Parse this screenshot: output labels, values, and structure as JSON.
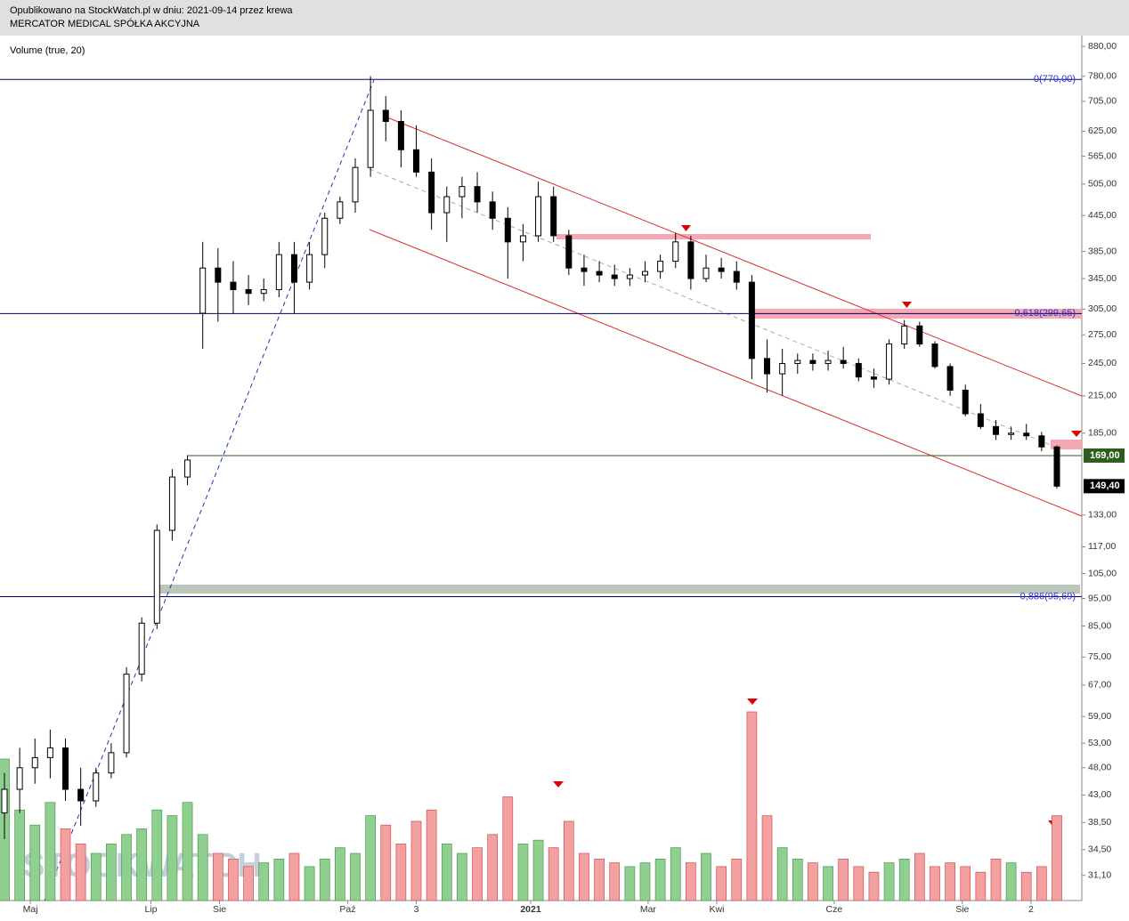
{
  "header": {
    "line1": "Opublikowano na StockWatch.pl w dniu: 2021-09-14 przez krewa",
    "line2": "MERCATOR MEDICAL SPÓŁKA AKCYJNA"
  },
  "chart_data": {
    "type": "candlestick",
    "indicator": "Volume (true, 20)",
    "watermark": "STOCKWATCH",
    "log_scale": true,
    "ylim": [
      28.1,
      919
    ],
    "xlim": [
      0,
      69
    ],
    "yticks": [
      {
        "value": 880,
        "label": "880,00"
      },
      {
        "value": 780,
        "label": "780,00"
      },
      {
        "value": 705,
        "label": "705,00"
      },
      {
        "value": 625,
        "label": "625,00"
      },
      {
        "value": 565,
        "label": "565,00"
      },
      {
        "value": 505,
        "label": "505,00"
      },
      {
        "value": 445,
        "label": "445,00"
      },
      {
        "value": 385,
        "label": "385,00"
      },
      {
        "value": 345,
        "label": "345,00"
      },
      {
        "value": 305,
        "label": "305,00"
      },
      {
        "value": 275,
        "label": "275,00"
      },
      {
        "value": 245,
        "label": "245,00"
      },
      {
        "value": 215,
        "label": "215,00"
      },
      {
        "value": 185,
        "label": "185,00"
      },
      {
        "value": 133,
        "label": "133,00"
      },
      {
        "value": 117,
        "label": "117,00"
      },
      {
        "value": 105,
        "label": "105,00"
      },
      {
        "value": 95,
        "label": "95,00"
      },
      {
        "value": 85,
        "label": "85,00"
      },
      {
        "value": 75,
        "label": "75,00"
      },
      {
        "value": 67,
        "label": "67,00"
      },
      {
        "value": 59,
        "label": "59,00"
      },
      {
        "value": 53,
        "label": "53,00"
      },
      {
        "value": 48,
        "label": "48,00"
      },
      {
        "value": 43,
        "label": "43,00"
      },
      {
        "value": 38.5,
        "label": "38,50"
      },
      {
        "value": 34.5,
        "label": "34,50"
      },
      {
        "value": 31.1,
        "label": "31,10"
      }
    ],
    "xticks": [
      {
        "value": 1.7,
        "label": "Maj"
      },
      {
        "value": 9.6,
        "label": "Lip"
      },
      {
        "value": 14.1,
        "label": "Sie"
      },
      {
        "value": 22.5,
        "label": "Paź"
      },
      {
        "value": 27,
        "label": "3"
      },
      {
        "value": 34.5,
        "label": "2021"
      },
      {
        "value": 42.2,
        "label": "Mar"
      },
      {
        "value": 46.7,
        "label": "Kwi"
      },
      {
        "value": 54.4,
        "label": "Cze"
      },
      {
        "value": 62.8,
        "label": "Sie"
      },
      {
        "value": 67.3,
        "label": "2"
      }
    ],
    "levels": [
      {
        "value": 770,
        "label": "0(770,00)",
        "color": "#00006e"
      },
      {
        "value": 299.65,
        "label": "0,618(299,65)",
        "color": "#00006e"
      },
      {
        "value": 95.69,
        "label": "0,886(95,69)",
        "color": "#00006e"
      }
    ],
    "price_lines": [
      {
        "value": 169,
        "label": "169,00",
        "color": "#2e5e1e"
      },
      {
        "value": 149.4,
        "label": "149,40",
        "color": "#000000"
      }
    ],
    "up_color": "#8fcf8f",
    "down_color": "#f2a0a0",
    "open": [
      40,
      44,
      48,
      50,
      52,
      44,
      42,
      47,
      51,
      70,
      86,
      125,
      155,
      300,
      360,
      340,
      330,
      325,
      330,
      380,
      340,
      380,
      440,
      470,
      540,
      680,
      650,
      580,
      530,
      450,
      480,
      500,
      470,
      440,
      400,
      410,
      480,
      410,
      360,
      355,
      350,
      345,
      350,
      355,
      370,
      400,
      345,
      360,
      355,
      340,
      250,
      235,
      245,
      248,
      245,
      248,
      245,
      232,
      230,
      265,
      285,
      265,
      242,
      220,
      200,
      190,
      184,
      185,
      183,
      175
    ],
    "high": [
      47,
      52,
      54,
      56,
      54,
      48,
      48,
      53,
      72,
      88,
      128,
      160,
      169,
      400,
      390,
      370,
      350,
      345,
      400,
      400,
      400,
      450,
      480,
      560,
      780,
      720,
      680,
      640,
      560,
      500,
      520,
      530,
      490,
      460,
      430,
      510,
      500,
      420,
      380,
      370,
      365,
      360,
      370,
      380,
      415,
      410,
      380,
      375,
      370,
      350,
      270,
      260,
      255,
      255,
      258,
      262,
      250,
      240,
      270,
      292,
      290,
      268,
      245,
      225,
      208,
      195,
      190,
      192,
      186,
      176
    ],
    "low": [
      36,
      40,
      45,
      46,
      42,
      38,
      41,
      46,
      50,
      68,
      84,
      120,
      150,
      260,
      290,
      300,
      310,
      315,
      320,
      300,
      330,
      360,
      430,
      450,
      520,
      600,
      540,
      520,
      420,
      400,
      440,
      450,
      420,
      345,
      370,
      400,
      400,
      350,
      335,
      340,
      335,
      335,
      340,
      345,
      360,
      330,
      340,
      345,
      330,
      230,
      218,
      215,
      235,
      238,
      238,
      240,
      228,
      222,
      225,
      260,
      262,
      240,
      215,
      198,
      188,
      180,
      180,
      180,
      172,
      148
    ],
    "close": [
      44,
      48,
      50,
      52,
      44,
      42,
      47,
      51,
      70,
      86,
      125,
      155,
      166,
      360,
      340,
      330,
      325,
      330,
      380,
      340,
      380,
      440,
      470,
      540,
      680,
      650,
      580,
      530,
      450,
      480,
      500,
      470,
      440,
      400,
      410,
      480,
      410,
      360,
      355,
      350,
      345,
      350,
      355,
      370,
      400,
      345,
      360,
      355,
      340,
      250,
      235,
      245,
      248,
      245,
      248,
      245,
      232,
      230,
      265,
      285,
      265,
      242,
      220,
      200,
      190,
      184,
      185,
      183,
      175,
      149.4
    ],
    "volume": [
      75,
      48,
      40,
      52,
      38,
      30,
      25,
      30,
      35,
      38,
      48,
      45,
      52,
      35,
      25,
      22,
      18,
      20,
      22,
      25,
      18,
      22,
      28,
      25,
      45,
      40,
      30,
      42,
      48,
      30,
      25,
      28,
      35,
      55,
      30,
      32,
      28,
      42,
      25,
      22,
      20,
      18,
      20,
      22,
      28,
      20,
      25,
      18,
      22,
      100,
      45,
      28,
      22,
      20,
      18,
      22,
      18,
      15,
      20,
      22,
      25,
      18,
      20,
      18,
      15,
      22,
      20,
      15,
      18,
      45
    ]
  }
}
